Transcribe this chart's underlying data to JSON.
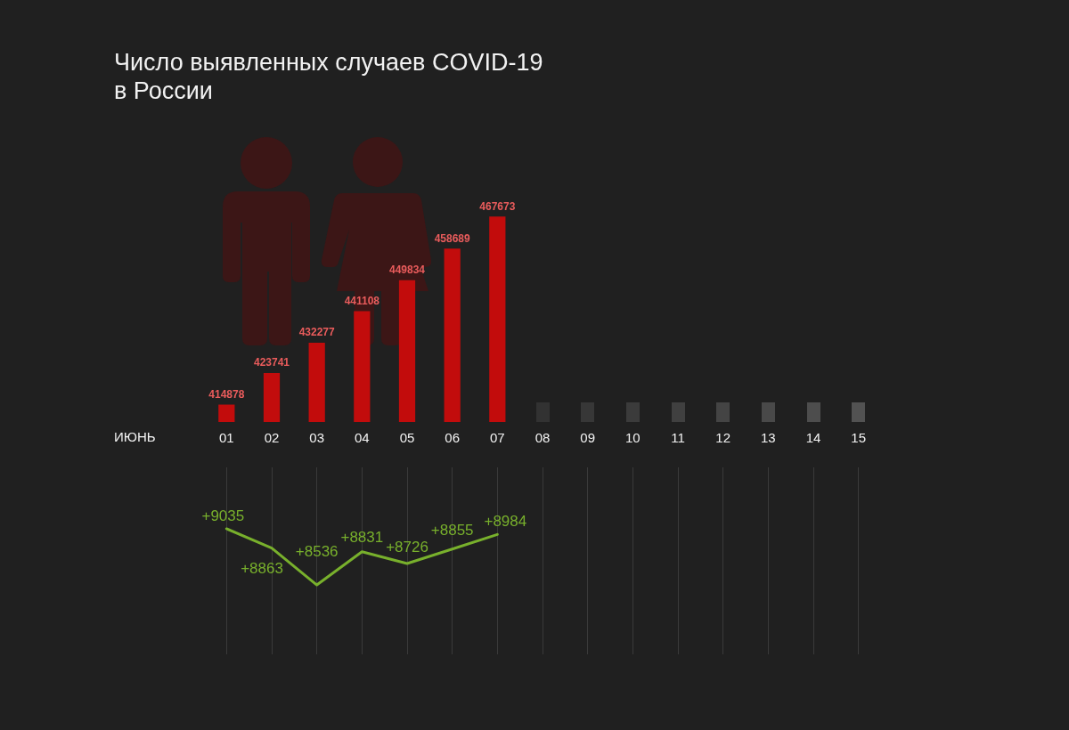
{
  "chart_data": [
    {
      "type": "bar",
      "title": "Число выявленных случаев COVID-19 в России",
      "xlabel": "ИЮНЬ",
      "categories": [
        "01",
        "02",
        "03",
        "04",
        "05",
        "06",
        "07",
        "08",
        "09",
        "10",
        "11",
        "12",
        "13",
        "14",
        "15"
      ],
      "values": [
        414878,
        423741,
        432277,
        441108,
        449834,
        458689,
        467673,
        null,
        null,
        null,
        null,
        null,
        null,
        null,
        null
      ],
      "color": "#c20c0c",
      "data_labels": true,
      "tick_labels": "x",
      "legend": false
    },
    {
      "type": "line",
      "categories": [
        "01",
        "02",
        "03",
        "04",
        "05",
        "06",
        "07",
        "08",
        "09",
        "10",
        "11",
        "12",
        "13",
        "14",
        "15"
      ],
      "values": [
        9035,
        8863,
        8536,
        8831,
        8726,
        8855,
        8984,
        null,
        null,
        null,
        null,
        null,
        null,
        null,
        null
      ],
      "value_labels": [
        "+9035",
        "+8863",
        "+8536",
        "+8831",
        "+8726",
        "+8855",
        "+8984",
        null,
        null,
        null,
        null,
        null,
        null,
        null,
        null
      ],
      "color": "#78b02c",
      "ylim": [
        7920,
        9580
      ],
      "grid": "x",
      "tick_labels": false,
      "legend": false,
      "marker": "none"
    }
  ]
}
